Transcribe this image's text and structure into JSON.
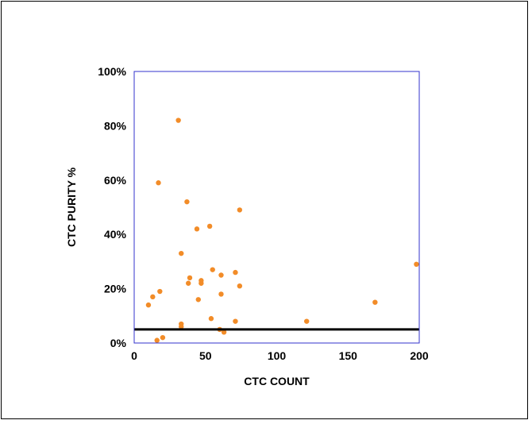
{
  "chart_data": {
    "type": "scatter",
    "title": "",
    "xlabel": "CTC COUNT",
    "ylabel": "CTC PURITY %",
    "xlim": [
      0,
      200
    ],
    "ylim": [
      0,
      1
    ],
    "x_ticks": [
      0,
      50,
      100,
      150,
      200
    ],
    "x_tick_labels": [
      "0",
      "50",
      "100",
      "150",
      "200"
    ],
    "y_ticks": [
      0,
      0.2,
      0.4,
      0.6,
      0.8,
      1.0
    ],
    "y_tick_labels": [
      "0%",
      "20%",
      "40%",
      "60%",
      "80%",
      "100%"
    ],
    "grid": false,
    "legend": "none",
    "point_color": "#f28c28",
    "plot_border_color": "#3333cc",
    "reference_line": {
      "y": 0.05,
      "color": "#000000"
    },
    "points": [
      {
        "x": 10,
        "y": 0.14
      },
      {
        "x": 13,
        "y": 0.17
      },
      {
        "x": 16,
        "y": 0.01
      },
      {
        "x": 17,
        "y": 0.59
      },
      {
        "x": 18,
        "y": 0.19
      },
      {
        "x": 20,
        "y": 0.02
      },
      {
        "x": 31,
        "y": 0.82
      },
      {
        "x": 33,
        "y": 0.33
      },
      {
        "x": 33,
        "y": 0.07
      },
      {
        "x": 33,
        "y": 0.06
      },
      {
        "x": 37,
        "y": 0.52
      },
      {
        "x": 38,
        "y": 0.22
      },
      {
        "x": 39,
        "y": 0.24
      },
      {
        "x": 44,
        "y": 0.42
      },
      {
        "x": 45,
        "y": 0.16
      },
      {
        "x": 47,
        "y": 0.22
      },
      {
        "x": 47,
        "y": 0.23
      },
      {
        "x": 53,
        "y": 0.43
      },
      {
        "x": 54,
        "y": 0.09
      },
      {
        "x": 55,
        "y": 0.27
      },
      {
        "x": 60,
        "y": 0.05
      },
      {
        "x": 61,
        "y": 0.25
      },
      {
        "x": 61,
        "y": 0.18
      },
      {
        "x": 63,
        "y": 0.04
      },
      {
        "x": 71,
        "y": 0.26
      },
      {
        "x": 71,
        "y": 0.08
      },
      {
        "x": 74,
        "y": 0.49
      },
      {
        "x": 74,
        "y": 0.21
      },
      {
        "x": 121,
        "y": 0.08
      },
      {
        "x": 169,
        "y": 0.15
      },
      {
        "x": 198,
        "y": 0.29
      }
    ]
  }
}
